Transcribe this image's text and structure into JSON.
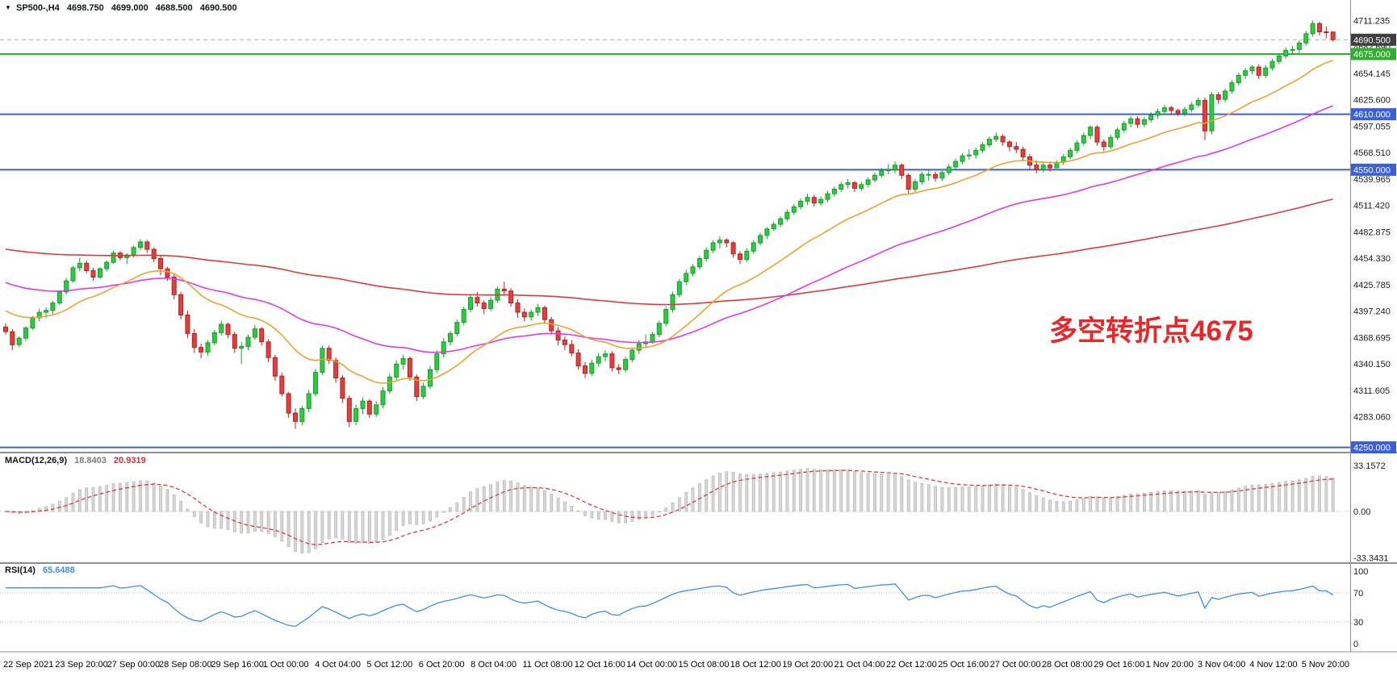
{
  "header": {
    "collapse_icon": "▼",
    "symbol_series": "SP500-,H4",
    "open": "4698.750",
    "high": "4699.000",
    "low": "4688.500",
    "close": "4690.500"
  },
  "annotation": {
    "text": "多空转折点4675",
    "color": "#e82828"
  },
  "price_axis": {
    "labels": [
      "4711.235",
      "4682.690",
      "4654.145",
      "4625.600",
      "4597.055",
      "4568.510",
      "4539.965",
      "4511.420",
      "4482.875",
      "4454.330",
      "4425.785",
      "4397.240",
      "4368.695",
      "4340.150",
      "4311.605",
      "4283.060"
    ],
    "badges": [
      {
        "value": "4690.500",
        "price": 4690.5,
        "bg": "#3f3f3f"
      },
      {
        "value": "4675.000",
        "price": 4675,
        "bg": "#2faf2f"
      },
      {
        "value": "4610.000",
        "price": 4610,
        "bg": "#3a5fd9"
      },
      {
        "value": "4550.000",
        "price": 4550,
        "bg": "#3a5fd9"
      },
      {
        "value": "4250.000",
        "price": 4250,
        "bg": "#3a5fd9"
      }
    ]
  },
  "hlines": [
    {
      "price": 4690.5,
      "color": "#aeaeae",
      "style": "dashed",
      "width": 1
    },
    {
      "price": 4675,
      "color": "#2faf2f",
      "style": "solid",
      "width": 2
    },
    {
      "price": 4610,
      "color": "#3a5fd9",
      "style": "solid",
      "width": 2
    },
    {
      "price": 4550,
      "color": "#3a5fd9",
      "style": "solid",
      "width": 2
    },
    {
      "price": 4250,
      "color": "#3a5fd9",
      "style": "solid",
      "width": 2
    }
  ],
  "macd_panel": {
    "name": "MACD(12,26,9)",
    "value1": "18.8403",
    "value2": "20.9319",
    "axis": [
      {
        "label": "33.1572",
        "value": 33.1572
      },
      {
        "label": "0.00",
        "value": 0
      },
      {
        "label": "-33.3431",
        "value": -33.3431
      }
    ]
  },
  "rsi_panel": {
    "name": "RSI(14)",
    "value": "65.6488",
    "axis": [
      {
        "label": "100",
        "value": 100
      },
      {
        "label": "70",
        "value": 70
      },
      {
        "label": "30",
        "value": 30
      },
      {
        "label": "0",
        "value": 0
      }
    ],
    "levels": [
      70,
      30
    ]
  },
  "date_axis": [
    "22 Sep 2021",
    "23 Sep 20:00",
    "27 Sep 00:00",
    "28 Sep 08:00",
    "29 Sep 16:00",
    "1 Oct 00:00",
    "4 Oct 04:00",
    "5 Oct 12:00",
    "6 Oct 20:00",
    "8 Oct 04:00",
    "11 Oct 08:00",
    "12 Oct 16:00",
    "14 Oct 00:00",
    "15 Oct 08:00",
    "18 Oct 12:00",
    "19 Oct 20:00",
    "21 Oct 04:00",
    "22 Oct 12:00",
    "25 Oct 16:00",
    "27 Oct 00:00",
    "28 Oct 08:00",
    "29 Oct 16:00",
    "1 Nov 20:00",
    "3 Nov 04:00",
    "4 Nov 12:00",
    "5 Nov 20:00"
  ],
  "colors": {
    "up": "#2eca40",
    "up_border": "#169e2c",
    "down": "#e43f3f",
    "down_border": "#b3221f",
    "bg": "#ffffff",
    "separator": "#8e8e8e",
    "macd_hist_fill": "#d8d8d8",
    "macd_hist_border": "#b9b9b9"
  },
  "chart_data": {
    "type": "candlestick",
    "symbol": "SP500-",
    "timeframe": "H4",
    "title": "SP500-,H4 4698.750 4699.000 4688.500 4690.500",
    "price_range": [
      4250.0,
      4711.235
    ],
    "grid": false,
    "candles": [
      [
        4380,
        4384,
        4372,
        4375
      ],
      [
        4375,
        4378,
        4355,
        4361
      ],
      [
        4361,
        4370,
        4358,
        4368
      ],
      [
        4368,
        4381,
        4365,
        4379
      ],
      [
        4379,
        4392,
        4377,
        4390
      ],
      [
        4390,
        4400,
        4386,
        4396
      ],
      [
        4396,
        4401,
        4390,
        4398
      ],
      [
        4398,
        4408,
        4394,
        4406
      ],
      [
        4406,
        4420,
        4404,
        4418
      ],
      [
        4418,
        4433,
        4415,
        4430
      ],
      [
        4430,
        4446,
        4428,
        4444
      ],
      [
        4444,
        4455,
        4440,
        4449
      ],
      [
        4449,
        4452,
        4438,
        4441
      ],
      [
        4441,
        4444,
        4430,
        4434
      ],
      [
        4434,
        4445,
        4432,
        4443
      ],
      [
        4443,
        4452,
        4440,
        4450
      ],
      [
        4450,
        4463,
        4448,
        4460
      ],
      [
        4460,
        4462,
        4452,
        4455
      ],
      [
        4455,
        4460,
        4448,
        4458
      ],
      [
        4458,
        4468,
        4455,
        4466
      ],
      [
        4466,
        4475,
        4463,
        4472
      ],
      [
        4472,
        4474,
        4460,
        4464
      ],
      [
        4464,
        4466,
        4450,
        4454
      ],
      [
        4454,
        4458,
        4436,
        4443
      ],
      [
        4443,
        4445,
        4430,
        4434
      ],
      [
        4434,
        4438,
        4410,
        4415
      ],
      [
        4415,
        4418,
        4388,
        4393
      ],
      [
        4393,
        4398,
        4368,
        4373
      ],
      [
        4373,
        4378,
        4352,
        4358
      ],
      [
        4358,
        4362,
        4346,
        4353
      ],
      [
        4353,
        4366,
        4349,
        4363
      ],
      [
        4363,
        4377,
        4360,
        4374
      ],
      [
        4374,
        4387,
        4371,
        4383
      ],
      [
        4383,
        4385,
        4368,
        4372
      ],
      [
        4372,
        4375,
        4352,
        4357
      ],
      [
        4357,
        4364,
        4340,
        4359
      ],
      [
        4359,
        4372,
        4355,
        4369
      ],
      [
        4369,
        4382,
        4366,
        4378
      ],
      [
        4378,
        4380,
        4360,
        4364
      ],
      [
        4364,
        4367,
        4342,
        4347
      ],
      [
        4347,
        4350,
        4322,
        4327
      ],
      [
        4327,
        4331,
        4305,
        4308
      ],
      [
        4308,
        4310,
        4282,
        4287
      ],
      [
        4287,
        4292,
        4270,
        4278
      ],
      [
        4278,
        4295,
        4274,
        4292
      ],
      [
        4292,
        4312,
        4288,
        4308
      ],
      [
        4308,
        4335,
        4305,
        4331
      ],
      [
        4331,
        4360,
        4328,
        4357
      ],
      [
        4357,
        4360,
        4340,
        4344
      ],
      [
        4344,
        4347,
        4320,
        4325
      ],
      [
        4325,
        4328,
        4298,
        4303
      ],
      [
        4303,
        4306,
        4272,
        4278
      ],
      [
        4278,
        4296,
        4274,
        4292
      ],
      [
        4292,
        4304,
        4286,
        4300
      ],
      [
        4300,
        4302,
        4282,
        4286
      ],
      [
        4286,
        4300,
        4283,
        4296
      ],
      [
        4296,
        4315,
        4292,
        4311
      ],
      [
        4311,
        4330,
        4308,
        4326
      ],
      [
        4326,
        4344,
        4322,
        4340
      ],
      [
        4340,
        4350,
        4334,
        4346
      ],
      [
        4346,
        4348,
        4322,
        4326
      ],
      [
        4326,
        4329,
        4300,
        4305
      ],
      [
        4305,
        4320,
        4302,
        4316
      ],
      [
        4316,
        4338,
        4313,
        4334
      ],
      [
        4334,
        4355,
        4330,
        4351
      ],
      [
        4351,
        4368,
        4347,
        4364
      ],
      [
        4364,
        4376,
        4360,
        4373
      ],
      [
        4373,
        4388,
        4370,
        4385
      ],
      [
        4385,
        4402,
        4382,
        4399
      ],
      [
        4399,
        4415,
        4396,
        4412
      ],
      [
        4412,
        4418,
        4402,
        4406
      ],
      [
        4406,
        4409,
        4394,
        4400
      ],
      [
        4400,
        4412,
        4397,
        4409
      ],
      [
        4409,
        4424,
        4406,
        4421
      ],
      [
        4421,
        4429,
        4415,
        4419
      ],
      [
        4419,
        4422,
        4402,
        4406
      ],
      [
        4406,
        4410,
        4390,
        4396
      ],
      [
        4396,
        4400,
        4386,
        4391
      ],
      [
        4391,
        4399,
        4387,
        4396
      ],
      [
        4396,
        4405,
        4392,
        4401
      ],
      [
        4401,
        4403,
        4384,
        4388
      ],
      [
        4388,
        4391,
        4372,
        4376
      ],
      [
        4376,
        4380,
        4360,
        4366
      ],
      [
        4366,
        4370,
        4355,
        4361
      ],
      [
        4361,
        4366,
        4348,
        4352
      ],
      [
        4352,
        4356,
        4334,
        4338
      ],
      [
        4338,
        4342,
        4325,
        4330
      ],
      [
        4330,
        4345,
        4327,
        4341
      ],
      [
        4341,
        4352,
        4337,
        4348
      ],
      [
        4348,
        4355,
        4343,
        4351
      ],
      [
        4351,
        4354,
        4332,
        4336
      ],
      [
        4336,
        4340,
        4329,
        4334
      ],
      [
        4334,
        4348,
        4331,
        4345
      ],
      [
        4345,
        4358,
        4342,
        4355
      ],
      [
        4355,
        4366,
        4351,
        4362
      ],
      [
        4362,
        4372,
        4357,
        4364
      ],
      [
        4364,
        4375,
        4362,
        4372
      ],
      [
        4372,
        4387,
        4369,
        4384
      ],
      [
        4384,
        4402,
        4381,
        4399
      ],
      [
        4399,
        4418,
        4396,
        4415
      ],
      [
        4415,
        4432,
        4412,
        4429
      ],
      [
        4429,
        4442,
        4425,
        4438
      ],
      [
        4438,
        4448,
        4435,
        4445
      ],
      [
        4445,
        4457,
        4442,
        4454
      ],
      [
        4454,
        4466,
        4451,
        4463
      ],
      [
        4463,
        4474,
        4460,
        4471
      ],
      [
        4471,
        4478,
        4465,
        4474
      ],
      [
        4474,
        4476,
        4466,
        4471
      ],
      [
        4471,
        4473,
        4455,
        4459
      ],
      [
        4459,
        4462,
        4448,
        4453
      ],
      [
        4453,
        4465,
        4450,
        4462
      ],
      [
        4462,
        4474,
        4459,
        4471
      ],
      [
        4471,
        4482,
        4468,
        4479
      ],
      [
        4479,
        4488,
        4475,
        4486
      ],
      [
        4486,
        4494,
        4484,
        4491
      ],
      [
        4491,
        4500,
        4488,
        4497
      ],
      [
        4497,
        4507,
        4494,
        4504
      ],
      [
        4504,
        4513,
        4501,
        4510
      ],
      [
        4510,
        4519,
        4507,
        4516
      ],
      [
        4516,
        4524,
        4512,
        4520
      ],
      [
        4520,
        4523,
        4510,
        4514
      ],
      [
        4514,
        4521,
        4511,
        4518
      ],
      [
        4518,
        4527,
        4515,
        4524
      ],
      [
        4524,
        4532,
        4521,
        4529
      ],
      [
        4529,
        4537,
        4526,
        4534
      ],
      [
        4534,
        4540,
        4530,
        4536
      ],
      [
        4536,
        4538,
        4526,
        4530
      ],
      [
        4530,
        4537,
        4527,
        4534
      ],
      [
        4534,
        4542,
        4531,
        4539
      ],
      [
        4539,
        4547,
        4536,
        4544
      ],
      [
        4544,
        4552,
        4541,
        4549
      ],
      [
        4549,
        4556,
        4545,
        4550
      ],
      [
        4550,
        4559,
        4546,
        4555
      ],
      [
        4555,
        4557,
        4540,
        4544
      ],
      [
        4544,
        4546,
        4524,
        4529
      ],
      [
        4529,
        4540,
        4526,
        4537
      ],
      [
        4537,
        4548,
        4534,
        4545
      ],
      [
        4545,
        4550,
        4538,
        4545
      ],
      [
        4545,
        4548,
        4537,
        4541
      ],
      [
        4541,
        4550,
        4538,
        4547
      ],
      [
        4547,
        4556,
        4544,
        4553
      ],
      [
        4553,
        4562,
        4550,
        4559
      ],
      [
        4559,
        4568,
        4556,
        4565
      ],
      [
        4565,
        4572,
        4561,
        4566
      ],
      [
        4566,
        4574,
        4562,
        4571
      ],
      [
        4571,
        4580,
        4568,
        4577
      ],
      [
        4577,
        4586,
        4574,
        4583
      ],
      [
        4583,
        4590,
        4580,
        4586
      ],
      [
        4586,
        4588,
        4576,
        4580
      ],
      [
        4580,
        4582,
        4570,
        4575
      ],
      [
        4575,
        4580,
        4568,
        4572
      ],
      [
        4572,
        4575,
        4560,
        4564
      ],
      [
        4564,
        4567,
        4550,
        4555
      ],
      [
        4555,
        4560,
        4546,
        4550
      ],
      [
        4550,
        4558,
        4547,
        4555
      ],
      [
        4555,
        4559,
        4548,
        4552
      ],
      [
        4552,
        4560,
        4552,
        4558
      ],
      [
        4558,
        4567,
        4555,
        4564
      ],
      [
        4564,
        4574,
        4561,
        4571
      ],
      [
        4571,
        4582,
        4568,
        4579
      ],
      [
        4579,
        4590,
        4576,
        4587
      ],
      [
        4587,
        4598,
        4583,
        4596
      ],
      [
        4596,
        4598,
        4576,
        4580
      ],
      [
        4580,
        4583,
        4570,
        4575
      ],
      [
        4575,
        4588,
        4572,
        4585
      ],
      [
        4585,
        4596,
        4582,
        4593
      ],
      [
        4593,
        4603,
        4590,
        4600
      ],
      [
        4600,
        4608,
        4596,
        4605
      ],
      [
        4605,
        4608,
        4595,
        4599
      ],
      [
        4599,
        4607,
        4596,
        4604
      ],
      [
        4604,
        4612,
        4601,
        4609
      ],
      [
        4609,
        4616,
        4605,
        4613
      ],
      [
        4613,
        4620,
        4609,
        4617
      ],
      [
        4617,
        4619,
        4610,
        4614
      ],
      [
        4614,
        4616,
        4608,
        4611
      ],
      [
        4611,
        4618,
        4608,
        4615
      ],
      [
        4615,
        4623,
        4612,
        4620
      ],
      [
        4620,
        4628,
        4617,
        4625
      ],
      [
        4625,
        4628,
        4582,
        4592
      ],
      [
        4592,
        4634,
        4588,
        4631
      ],
      [
        4631,
        4634,
        4621,
        4626
      ],
      [
        4626,
        4638,
        4623,
        4635
      ],
      [
        4635,
        4647,
        4632,
        4644
      ],
      [
        4644,
        4655,
        4641,
        4652
      ],
      [
        4652,
        4660,
        4648,
        4657
      ],
      [
        4657,
        4663,
        4653,
        4661
      ],
      [
        4661,
        4664,
        4648,
        4652
      ],
      [
        4652,
        4663,
        4649,
        4660
      ],
      [
        4660,
        4670,
        4657,
        4667
      ],
      [
        4667,
        4676,
        4664,
        4673
      ],
      [
        4673,
        4682,
        4670,
        4679
      ],
      [
        4679,
        4684,
        4674,
        4680
      ],
      [
        4680,
        4690,
        4676,
        4687
      ],
      [
        4687,
        4700,
        4684,
        4697
      ],
      [
        4697,
        4711.2,
        4694,
        4708
      ],
      [
        4708,
        4710,
        4695,
        4699
      ],
      [
        4699,
        4705,
        4692,
        4698.8
      ],
      [
        4698.8,
        4699,
        4688.5,
        4690.5
      ]
    ],
    "indicators": {
      "ma_fast": {
        "type": "ema",
        "period": 20,
        "color": "#f0a030",
        "seed": 4400
      },
      "ma_mid": {
        "type": "ema",
        "period": 55,
        "color": "#e636e6",
        "seed": 4430
      },
      "ma_slow": {
        "type": "ema",
        "period": 200,
        "color": "#dd3b3b",
        "seed": 4465
      },
      "macd": {
        "fast": 12,
        "slow": 26,
        "signal": 9,
        "signal_color": "#dd3b3b",
        "last_macd": 18.8403,
        "last_signal": 20.9319,
        "scale_max": 33.1572,
        "scale_min": -33.3431
      },
      "rsi": {
        "period": 14,
        "color": "#3e8ede",
        "last": 65.6488,
        "levels": [
          70,
          30
        ]
      }
    }
  }
}
